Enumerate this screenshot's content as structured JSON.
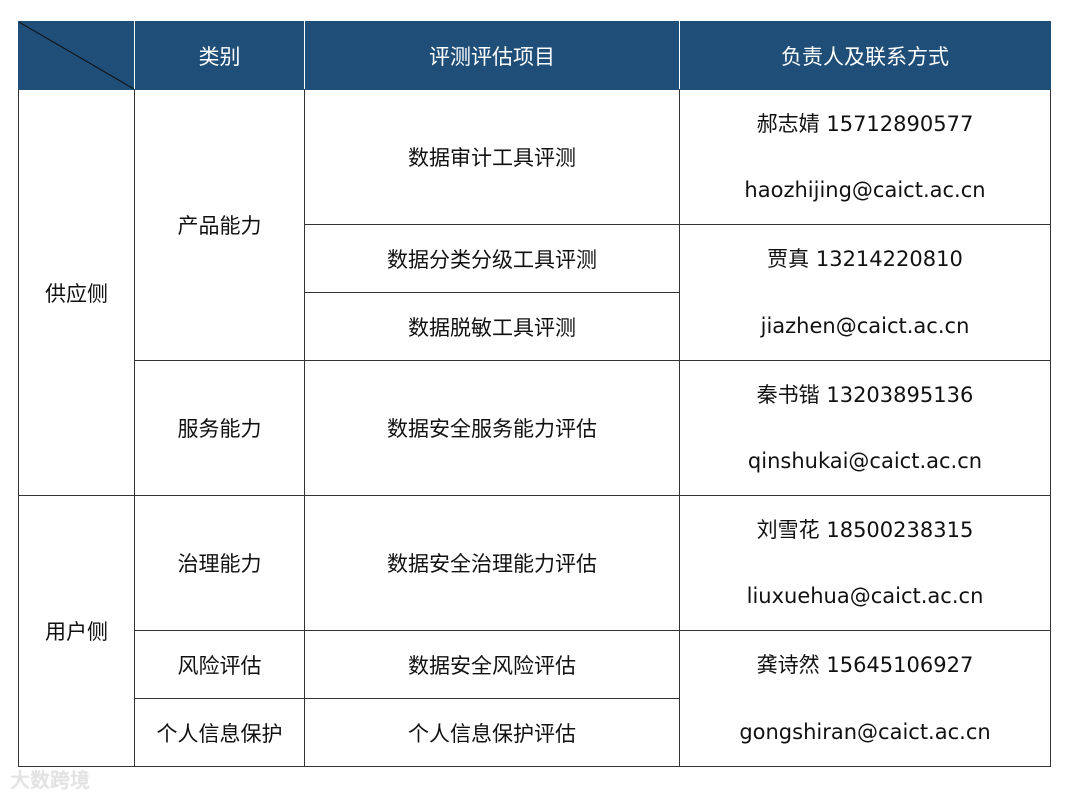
{
  "header": {
    "col_category": "类别",
    "col_item": "评测评估项目",
    "col_contact": "负责人及联系方式"
  },
  "groups": {
    "supply": "供应侧",
    "user": "用户侧"
  },
  "categories": {
    "product": "产品能力",
    "service": "服务能力",
    "governance": "治理能力",
    "risk": "风险评估",
    "personal": "个人信息保护"
  },
  "items": {
    "audit": "数据审计工具评测",
    "classify": "数据分类分级工具评测",
    "desensitize": "数据脱敏工具评测",
    "service": "数据安全服务能力评估",
    "governance": "数据安全治理能力评估",
    "risk": "数据安全风险评估",
    "personal": "个人信息保护评估"
  },
  "contacts": [
    {
      "name_phone": "郝志婧  15712890577",
      "email": "haozhijing@caict.ac.cn"
    },
    {
      "name_phone": "贾真  13214220810",
      "email": "jiazhen@caict.ac.cn"
    },
    {
      "name_phone": "秦书锴  13203895136",
      "email": "qinshukai@caict.ac.cn"
    },
    {
      "name_phone": "刘雪花  18500238315",
      "email": "liuxuehua@caict.ac.cn"
    },
    {
      "name_phone": "龚诗然  15645106927",
      "email": "gongshiran@caict.ac.cn"
    }
  ],
  "watermark": "大数跨境",
  "colors": {
    "header_bg": "#1f4e79",
    "header_text": "#ffffff"
  }
}
